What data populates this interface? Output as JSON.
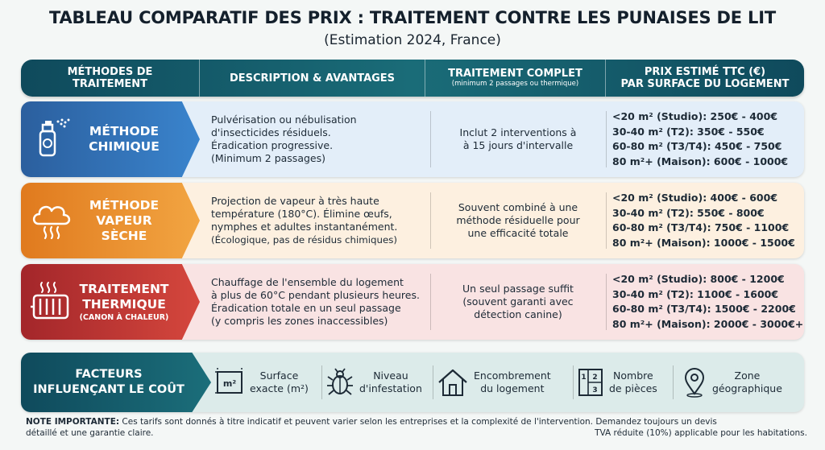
{
  "title": "TABLEAU COMPARATIF DES PRIX : TRAITEMENT CONTRE LES PUNAISES DE LIT",
  "subtitle": "(Estimation 2024, France)",
  "header": {
    "col1_line1": "MÉTHODES DE",
    "col1_line2": "TRAITEMENT",
    "col2": "DESCRIPTION & AVANTAGES",
    "col3_line1": "TRAITEMENT COMPLET",
    "col3_line2": "(minimum 2 passages ou thermique)",
    "col4_line1": "PRIX ESTIMÉ TTC (€)",
    "col4_line2": "PAR SURFACE DU LOGEMENT"
  },
  "methods": [
    {
      "name_line1": "MÉTHODE",
      "name_line2": "CHIMIQUE",
      "icon": "spray-can-icon",
      "color": "#3a84cd",
      "desc": [
        "Pulvérisation ou nébulisation",
        "d'insecticides résiduels.",
        "Éradication progressive.",
        "(Minimum 2 passages)"
      ],
      "full": [
        "Inclut 2 interventions à",
        "à 15 jours d'intervalle"
      ],
      "prices": [
        "<20 m² (Studio): 250€ - 400€",
        "30-40 m² (T2): 350€ - 550€",
        "60-80 m² (T3/T4): 450€ - 750€",
        "80 m²+ (Maison): 600€ - 1000€"
      ]
    },
    {
      "name_line1": "MÉTHODE",
      "name_line2": "VAPEUR SÈCHE",
      "icon": "steam-icon",
      "color": "#f2a542",
      "desc": [
        "Projection de vapeur à très haute",
        "température (180°C). Élimine œufs,",
        "nymphes et adultes instantanément.",
        "(Écologique, pas de résidus chimiques)"
      ],
      "full": [
        "Souvent combiné à une",
        "méthode résiduelle pour",
        "une efficacité totale"
      ],
      "prices": [
        "<20 m² (Studio): 400€ - 600€",
        "30-40 m² (T2): 550€ - 800€",
        "60-80 m² (T3/T4): 750€ - 1100€",
        "80 m²+ (Maison): 1000€ - 1500€"
      ]
    },
    {
      "name_line1": "TRAITEMENT",
      "name_line2": "THERMIQUE",
      "name_sub": "(CANON À CHALEUR)",
      "icon": "heater-icon",
      "color": "#d5473d",
      "desc": [
        "Chauffage de l'ensemble du logement",
        "à plus de 60°C pendant plusieurs heures.",
        "Éradication totale en un seul passage",
        "(y compris les zones inaccessibles)"
      ],
      "full": [
        "Un seul passage suffit",
        "(souvent garanti avec",
        "détection canine)"
      ],
      "prices": [
        "<20 m² (Studio): 800€ - 1200€",
        "30-40 m² (T2): 1100€ - 1600€",
        "60-80 m² (T3/T4): 1500€ - 2200€",
        "80 m²+ (Maison): 2000€ - 3000€+"
      ]
    }
  ],
  "factors": {
    "title_line1": "FACTEURS",
    "title_line2": "INFLUENÇANT LE COÛT",
    "items": [
      {
        "line1": "Surface",
        "line2": "exacte (m²)",
        "icon": "surface-m2-icon",
        "icon_text": "m²"
      },
      {
        "line1": "Niveau",
        "line2": "d'infestation",
        "icon": "bug-icon"
      },
      {
        "line1": "Encombrement",
        "line2": "du logement",
        "icon": "house-icon"
      },
      {
        "line1": "Nombre",
        "line2": "de pièces",
        "icon": "rooms-icon",
        "icon_text_a": "1",
        "icon_text_b": "2",
        "icon_text_c": "3"
      },
      {
        "line1": "Zone",
        "line2": "géographique",
        "icon": "location-pin-icon"
      }
    ]
  },
  "note": {
    "label": "NOTE IMPORTANTE:",
    "text1": " Ces tarifs sont donnés à titre indicatif et peuvent varier selon les entreprises et la complexité de l'intervention.  Demandez toujours un devis",
    "text2": "détaillé et une garantie claire.",
    "text3": "TVA réduite (10%) applicable pour les habitations."
  }
}
